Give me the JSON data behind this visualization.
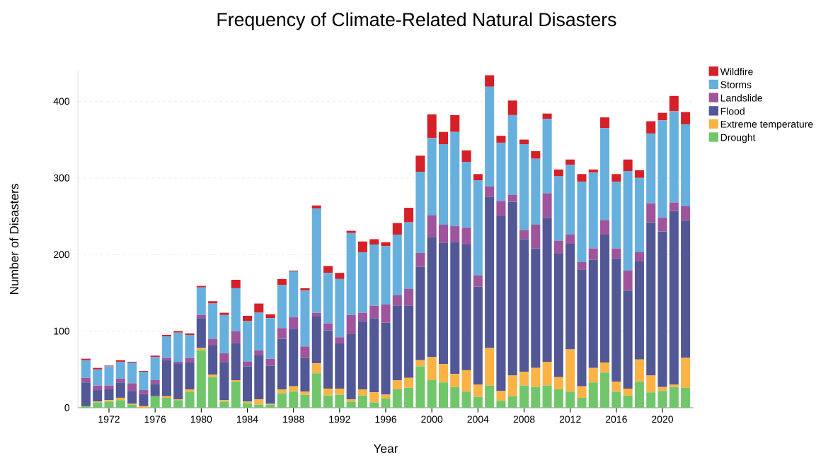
{
  "chart_data": {
    "type": "bar",
    "title": "Frequency of Climate-Related Natural Disasters",
    "xlabel": "Year",
    "ylabel": "Number of Disasters",
    "stacked": true,
    "x": [
      1970,
      1971,
      1972,
      1973,
      1974,
      1975,
      1976,
      1977,
      1978,
      1979,
      1980,
      1981,
      1982,
      1983,
      1984,
      1985,
      1986,
      1987,
      1988,
      1989,
      1990,
      1991,
      1992,
      1993,
      1994,
      1995,
      1996,
      1997,
      1998,
      1999,
      2000,
      2001,
      2002,
      2003,
      2004,
      2005,
      2006,
      2007,
      2008,
      2009,
      2010,
      2011,
      2012,
      2013,
      2014,
      2015,
      2016,
      2017,
      2018,
      2019,
      2020,
      2021,
      2022
    ],
    "xlim": [
      1969.3,
      2022.7
    ],
    "xticks": [
      1972,
      1976,
      1980,
      1984,
      1988,
      1992,
      1996,
      2000,
      2004,
      2008,
      2012,
      2016,
      2020
    ],
    "ylim": [
      0,
      440
    ],
    "yticks": [
      0,
      100,
      200,
      300,
      400
    ],
    "grid": "y",
    "legend": "top right",
    "series": [
      {
        "name": "Drought",
        "color": "#71c66b",
        "values": [
          2,
          7,
          8,
          10,
          4,
          0,
          15,
          13,
          10,
          21,
          75,
          40,
          8,
          34,
          6,
          4,
          4,
          19,
          21,
          17,
          45,
          16,
          17,
          8,
          16,
          7,
          12,
          24,
          26,
          54,
          36,
          33,
          27,
          21,
          14,
          29,
          9,
          15,
          29,
          27,
          29,
          24,
          21,
          13,
          33,
          46,
          21,
          16,
          34,
          20,
          22,
          27,
          26
        ]
      },
      {
        "name": "Extreme temperature",
        "color": "#fbb345",
        "values": [
          0,
          1,
          2,
          3,
          1,
          2,
          0,
          2,
          1,
          3,
          3,
          3,
          2,
          2,
          2,
          7,
          1,
          5,
          7,
          4,
          13,
          9,
          8,
          3,
          8,
          13,
          5,
          12,
          13,
          8,
          30,
          24,
          17,
          28,
          16,
          49,
          13,
          27,
          18,
          25,
          31,
          16,
          55,
          15,
          19,
          13,
          13,
          9,
          29,
          22,
          5,
          3,
          39
        ]
      },
      {
        "name": "Flood",
        "color": "#525796",
        "values": [
          31,
          15,
          14,
          20,
          17,
          16,
          16,
          47,
          47,
          35,
          39,
          39,
          49,
          48,
          46,
          58,
          50,
          66,
          75,
          44,
          61,
          76,
          59,
          85,
          89,
          97,
          94,
          97,
          94,
          122,
          157,
          158,
          172,
          164,
          128,
          197,
          228,
          227,
          173,
          156,
          188,
          161,
          138,
          152,
          141,
          167,
          161,
          128,
          128,
          200,
          203,
          227,
          180
        ]
      },
      {
        "name": "Landslide",
        "color": "#9e559c",
        "values": [
          6,
          6,
          5,
          5,
          10,
          5,
          5,
          3,
          2,
          6,
          4,
          8,
          12,
          16,
          6,
          6,
          9,
          14,
          15,
          15,
          5,
          9,
          8,
          25,
          11,
          16,
          24,
          14,
          22,
          18,
          28,
          24,
          21,
          22,
          15,
          14,
          20,
          9,
          12,
          31,
          32,
          17,
          12,
          10,
          15,
          19,
          13,
          26,
          12,
          25,
          18,
          11,
          18
        ]
      },
      {
        "name": "Storms",
        "color": "#67b0de",
        "values": [
          23,
          21,
          25,
          22,
          27,
          24,
          30,
          28,
          38,
          30,
          36,
          46,
          50,
          56,
          53,
          49,
          53,
          56,
          60,
          73,
          136,
          66,
          76,
          107,
          79,
          80,
          76,
          79,
          87,
          106,
          101,
          105,
          123,
          86,
          124,
          130,
          76,
          104,
          112,
          86,
          97,
          84,
          91,
          105,
          99,
          120,
          87,
          130,
          97,
          91,
          127,
          119,
          107
        ]
      },
      {
        "name": "Wildfire",
        "color": "#d62027",
        "values": [
          2,
          2,
          1,
          2,
          1,
          1,
          2,
          2,
          2,
          2,
          2,
          3,
          3,
          11,
          7,
          12,
          5,
          8,
          1,
          3,
          4,
          9,
          8,
          3,
          14,
          7,
          5,
          15,
          19,
          21,
          31,
          16,
          22,
          15,
          8,
          15,
          9,
          19,
          6,
          10,
          7,
          9,
          7,
          10,
          4,
          14,
          10,
          15,
          10,
          16,
          10,
          20,
          16
        ]
      }
    ]
  }
}
